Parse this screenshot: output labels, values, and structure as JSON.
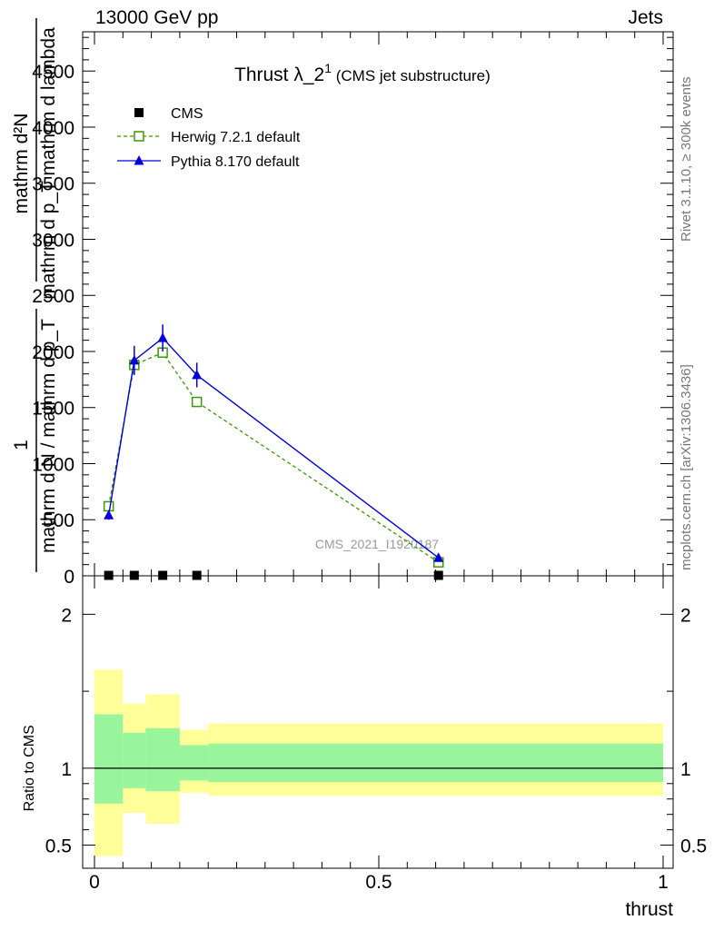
{
  "header": {
    "left": "13000 GeV pp",
    "right": "Jets"
  },
  "side_labels": {
    "rivet": "Rivet 3.1.10, ≥ 300k events",
    "mcplots": "mcplots.cern.ch [arXiv:1306.3436]"
  },
  "chart_data": [
    {
      "type": "line",
      "panel": "main",
      "title": "Thrust λ_2",
      "title_sup": "1",
      "title_note": "(CMS jet substructure)",
      "watermark": "CMS_2021_I1920187",
      "ylabel": {
        "top_num": "mathrm d²N",
        "top_den": "mathrm d p_T mathrm d lambda",
        "bot_num": "1",
        "bot_den": "mathrm d N / mathrm d p_T"
      },
      "xlim": [
        0,
        1
      ],
      "ylim": [
        0,
        4850
      ],
      "yticks": [
        0,
        500,
        1000,
        1500,
        2000,
        2500,
        3000,
        3500,
        4000,
        4500
      ],
      "ytick_labels": [
        "0",
        "500",
        "1000",
        "1500",
        "2000",
        "2500",
        "3000",
        "3500",
        "4000",
        "4500"
      ],
      "legend_position": "top-left",
      "series": [
        {
          "name": "CMS",
          "color": "#000000",
          "marker": "square-filled",
          "x": [
            0.025,
            0.07,
            0.12,
            0.18,
            0.605
          ],
          "y": [
            4,
            4,
            4,
            4,
            4
          ]
        },
        {
          "name": "Herwig 7.2.1 default",
          "color": "#3a9b00",
          "marker": "square-open",
          "line": "dashed",
          "x": [
            0.025,
            0.07,
            0.12,
            0.18,
            0.605
          ],
          "y": [
            620,
            1880,
            1990,
            1550,
            120
          ]
        },
        {
          "name": "Pythia 8.170 default",
          "color": "#0000dd",
          "marker": "triangle-filled",
          "line": "solid",
          "x": [
            0.025,
            0.07,
            0.12,
            0.18,
            0.605
          ],
          "y": [
            540,
            1920,
            2120,
            1790,
            160
          ],
          "yerr": [
            40,
            130,
            120,
            110,
            20
          ]
        }
      ]
    },
    {
      "type": "area",
      "panel": "ratio",
      "ylabel": "Ratio to CMS",
      "xlabel": "thrust",
      "xlim": [
        0,
        1
      ],
      "ylim": [
        0.35,
        2.25
      ],
      "yticks": [
        0.5,
        1,
        2
      ],
      "ytick_labels": [
        "0.5",
        "1",
        "2"
      ],
      "xticks": [
        0,
        0.5,
        1
      ],
      "xtick_labels": [
        "0",
        "0.5",
        "1"
      ],
      "reference_line": 1,
      "bins": [
        {
          "x_low": 0.0,
          "x_high": 0.05,
          "band_2sigma": [
            0.43,
            1.64
          ],
          "band_1sigma": [
            0.77,
            1.35
          ]
        },
        {
          "x_low": 0.05,
          "x_high": 0.09,
          "band_2sigma": [
            0.71,
            1.42
          ],
          "band_1sigma": [
            0.87,
            1.23
          ]
        },
        {
          "x_low": 0.09,
          "x_high": 0.15,
          "band_2sigma": [
            0.64,
            1.48
          ],
          "band_1sigma": [
            0.85,
            1.26
          ]
        },
        {
          "x_low": 0.15,
          "x_high": 0.2,
          "band_2sigma": [
            0.84,
            1.25
          ],
          "band_1sigma": [
            0.92,
            1.15
          ]
        },
        {
          "x_low": 0.2,
          "x_high": 1.0,
          "band_2sigma": [
            0.82,
            1.29
          ],
          "band_1sigma": [
            0.91,
            1.16
          ]
        }
      ],
      "band_colors": {
        "inner": "#99f59c",
        "outer": "#ffff99"
      }
    }
  ]
}
